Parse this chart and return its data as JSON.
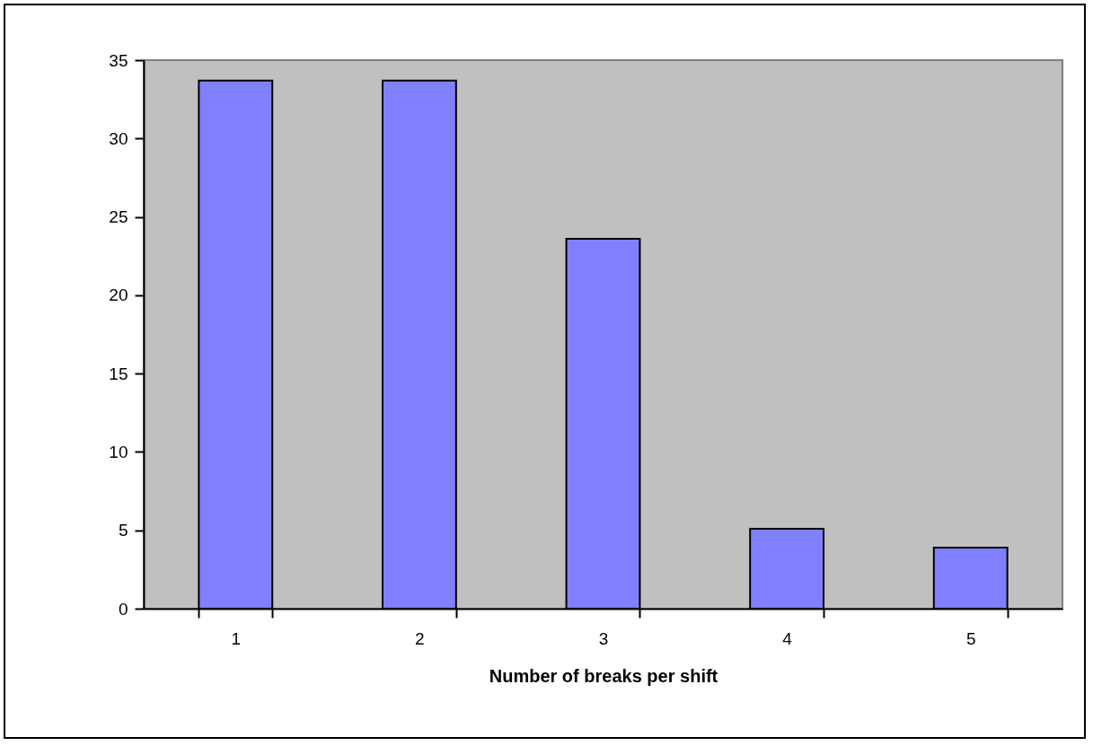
{
  "chart_data": {
    "type": "bar",
    "xlabel": "Number of breaks per shift",
    "categories": [
      "1",
      "2",
      "3",
      "4",
      "5"
    ],
    "values": [
      33.7,
      33.7,
      23.6,
      5.1,
      3.9
    ],
    "color": "#8080ff",
    "ylim": [
      0,
      35
    ],
    "yticks": [
      0,
      5,
      10,
      15,
      20,
      25,
      30,
      35
    ],
    "grid": false
  }
}
